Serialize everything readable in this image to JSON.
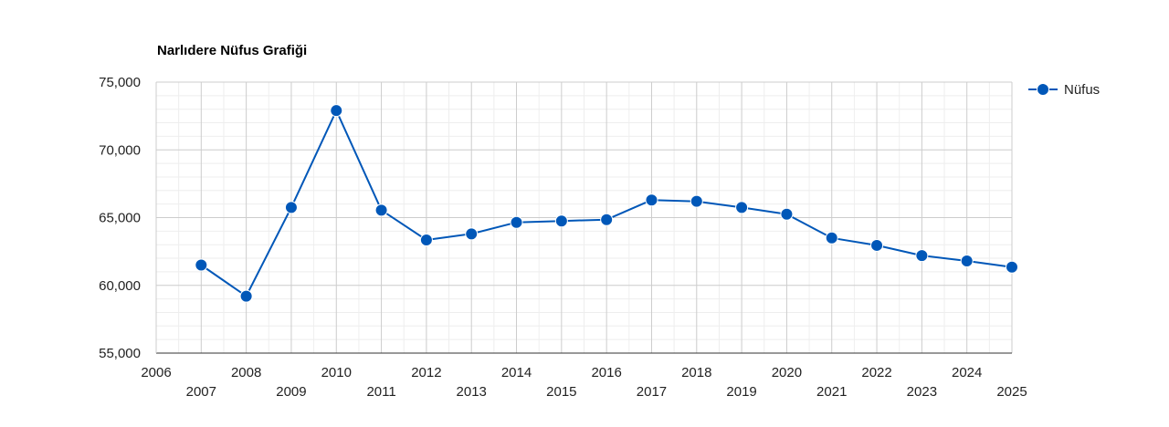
{
  "chart_data": {
    "type": "line",
    "title": "Narlıdere Nüfus Grafiği",
    "xlabel": "",
    "ylabel": "",
    "x": [
      2007,
      2008,
      2009,
      2010,
      2011,
      2012,
      2013,
      2014,
      2015,
      2016,
      2017,
      2018,
      2019,
      2020,
      2021,
      2022,
      2023,
      2024,
      2025
    ],
    "series": [
      {
        "name": "Nüfus",
        "color": "#0057b8",
        "values": [
          61500,
          59200,
          65750,
          72900,
          65550,
          63350,
          63800,
          64650,
          64750,
          64850,
          66300,
          66200,
          65750,
          65250,
          63500,
          62950,
          62200,
          61800,
          61350
        ]
      }
    ],
    "xlim": [
      2006,
      2025
    ],
    "ylim": [
      55000,
      75000
    ],
    "x_ticks_upper": [
      "2006",
      "2008",
      "2010",
      "2012",
      "2014",
      "2016",
      "2018",
      "2020",
      "2022",
      "2024"
    ],
    "x_ticks_lower": [
      "2007",
      "2009",
      "2011",
      "2013",
      "2015",
      "2017",
      "2019",
      "2021",
      "2023",
      "2025"
    ],
    "y_ticks": [
      "55,000",
      "60,000",
      "65,000",
      "70,000",
      "75,000"
    ],
    "grid": true,
    "legend_position": "right"
  }
}
